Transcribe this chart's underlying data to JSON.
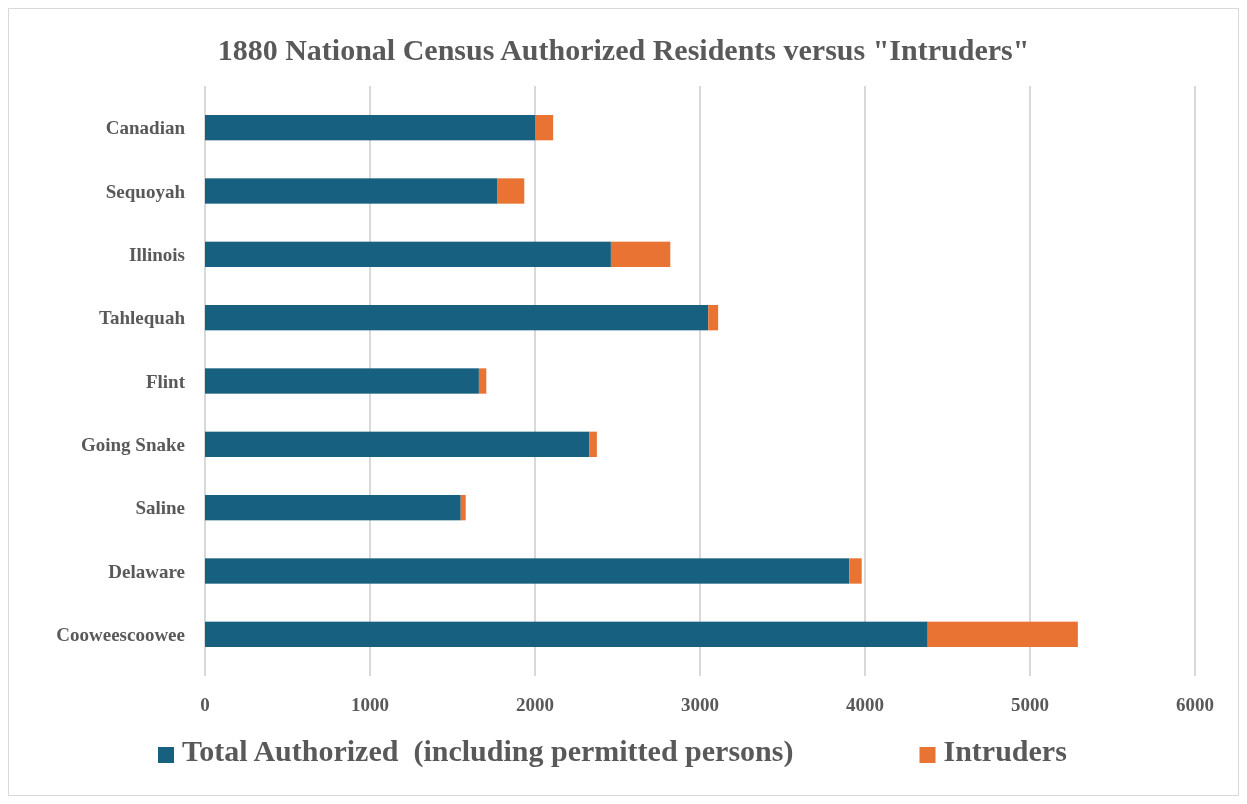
{
  "chart_data": {
    "type": "bar",
    "orientation": "horizontal",
    "stacked": true,
    "title": "1880 National Census Authorized Residents versus \"Intruders\"",
    "categories": [
      "Canadian",
      "Sequoyah ",
      "Illinois",
      "Tahlequah",
      "Flint",
      "Going Snake",
      "Saline",
      "Delaware",
      "Cooweescoowee"
    ],
    "series": [
      {
        "name": "Total Authorized  (including permitted persons)",
        "color": "#17607f",
        "values": [
          2000,
          1770,
          2460,
          3050,
          1660,
          2330,
          1550,
          3905,
          4380
        ]
      },
      {
        "name": "Intruders",
        "color": "#e97333",
        "values": [
          110,
          165,
          360,
          60,
          45,
          45,
          30,
          75,
          910
        ]
      }
    ],
    "xlim": [
      0,
      6000
    ],
    "xticks": [
      0,
      1000,
      2000,
      3000,
      4000,
      5000,
      6000
    ],
    "grid": "x",
    "legend": "bottom"
  }
}
